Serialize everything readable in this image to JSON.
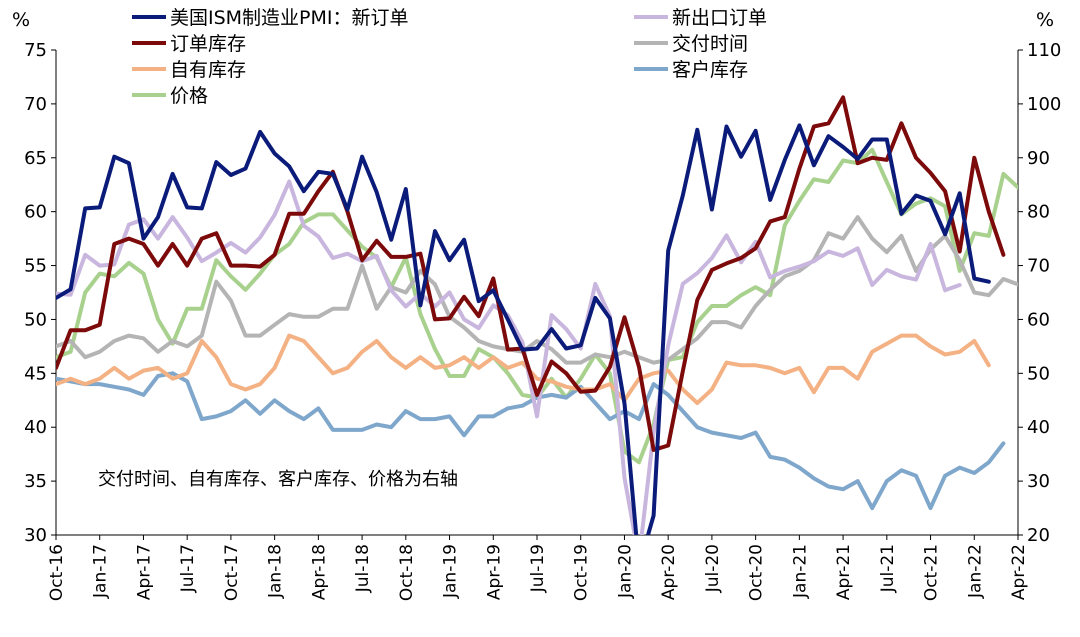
{
  "chart_data": {
    "type": "line",
    "y_left": {
      "unit": "%",
      "min": 30,
      "max": 75,
      "ticks": [
        30,
        35,
        40,
        45,
        50,
        55,
        60,
        65,
        70,
        75
      ]
    },
    "y_right": {
      "unit": "%",
      "min": 20,
      "max": 110,
      "ticks": [
        20,
        30,
        40,
        50,
        60,
        70,
        80,
        90,
        100,
        110
      ]
    },
    "x_ticks": [
      "Oct-16",
      "Jan-17",
      "Apr-17",
      "Jul-17",
      "Oct-17",
      "Jan-18",
      "Apr-18",
      "Jul-18",
      "Oct-18",
      "Jan-19",
      "Apr-19",
      "Jul-19",
      "Oct-19",
      "Jan-20",
      "Apr-20",
      "Jul-20",
      "Oct-20",
      "Jan-21",
      "Apr-21",
      "Jul-21",
      "Oct-21",
      "Jan-22",
      "Apr-22"
    ],
    "annotation": "交付时间、自有库存、客户库存、价格为右轴",
    "series": [
      {
        "name": "美国ISM制造业PMI：新订单",
        "axis": "left",
        "color": "#0b1b7a",
        "values": [
          52.0,
          52.8,
          60.3,
          60.4,
          65.1,
          64.5,
          57.5,
          59.5,
          63.5,
          60.4,
          60.3,
          64.6,
          63.4,
          64.0,
          67.4,
          65.4,
          64.2,
          61.9,
          63.7,
          63.5,
          60.2,
          65.1,
          61.8,
          57.4,
          62.1,
          51.3,
          58.2,
          55.5,
          57.4,
          51.7,
          52.7,
          50.0,
          47.2,
          47.3,
          49.1,
          47.3,
          47.6,
          52.0,
          50.1,
          42.2,
          27.1,
          31.8,
          56.4,
          61.5,
          67.6,
          60.2,
          67.9,
          65.1,
          67.5,
          61.1,
          64.8,
          68.0,
          64.3,
          67.0,
          66.0,
          64.9,
          66.7,
          66.7,
          59.8,
          61.5,
          61.0,
          57.9,
          61.7,
          53.8,
          53.5
        ]
      },
      {
        "name": "订单库存",
        "axis": "left",
        "color": "#7d0a0a",
        "values": [
          45.5,
          49.0,
          49.0,
          49.5,
          57.0,
          57.5,
          57.0,
          55.0,
          57.0,
          55.0,
          57.5,
          58.0,
          55.0,
          55.0,
          54.9,
          56.0,
          59.8,
          59.8,
          61.9,
          63.7,
          60.0,
          55.5,
          57.3,
          55.8,
          55.8,
          56.1,
          50.0,
          50.1,
          52.1,
          50.3,
          53.8,
          47.2,
          47.3,
          43.0,
          46.1,
          45.0,
          43.3,
          43.4,
          45.6,
          50.2,
          45.6,
          37.9,
          38.3,
          45.2,
          51.8,
          54.6,
          55.2,
          55.7,
          56.6,
          59.1,
          59.5,
          64.0,
          67.9,
          68.2,
          70.6,
          64.5,
          65.0,
          64.8,
          68.2,
          65.0,
          63.6,
          61.9,
          56.3,
          65.0,
          60.0,
          56.0
        ]
      },
      {
        "name": "自有库存",
        "axis": "right",
        "color": "#f4b183",
        "values": [
          48.0,
          49.0,
          48.0,
          49.0,
          51.0,
          49.0,
          50.5,
          51.0,
          49.0,
          50.0,
          56.0,
          53.0,
          48.0,
          47.0,
          48.0,
          51.0,
          57.0,
          56.0,
          53.0,
          50.0,
          51.0,
          54.0,
          56.0,
          53.0,
          51.0,
          53.0,
          51.0,
          51.5,
          53.0,
          51.0,
          53.0,
          51.0,
          52.0,
          49.0,
          48.5,
          47.5,
          47.0,
          47.0,
          48.0,
          45.0,
          49.0,
          50.0,
          50.5,
          47.0,
          44.5,
          47.0,
          52.0,
          51.5,
          51.5,
          51.0,
          50.0,
          51.0,
          46.5,
          51.0,
          51.0,
          49.0,
          54.0,
          55.5,
          57.0,
          57.0,
          55.0,
          53.5,
          54.0,
          56.0,
          51.5
        ]
      },
      {
        "name": "新出口订单",
        "axis": "left",
        "color": "#c9b6de",
        "values": [
          52.4,
          52.3,
          56.0,
          55.0,
          55.1,
          58.8,
          59.3,
          57.5,
          59.5,
          57.6,
          55.4,
          56.2,
          57.1,
          56.2,
          57.6,
          59.7,
          62.8,
          58.7,
          57.7,
          55.7,
          56.1,
          55.4,
          55.9,
          52.7,
          51.2,
          52.4,
          51.2,
          52.5,
          50.0,
          49.2,
          51.3,
          50.4,
          47.9,
          41.0,
          50.4,
          49.1,
          47.3,
          53.3,
          50.3,
          35.3,
          27.8,
          39.5,
          47.6,
          53.3,
          54.3,
          55.7,
          57.8,
          55.3,
          57.2,
          53.9,
          54.5,
          54.9,
          55.4,
          56.3,
          55.9,
          56.6,
          53.2,
          54.6,
          54.0,
          53.7,
          57.0,
          52.7,
          53.2
        ]
      },
      {
        "name": "交付时间",
        "axis": "right",
        "color": "#b4b4b4",
        "values": [
          55.0,
          56.0,
          53.0,
          54.0,
          56.0,
          57.0,
          56.5,
          54.0,
          56.0,
          55.0,
          57.0,
          67.0,
          63.5,
          57.0,
          57.0,
          59.0,
          61.0,
          60.5,
          60.5,
          62.0,
          62.0,
          70.0,
          62.0,
          66.0,
          65.0,
          69.0,
          66.5,
          60.5,
          58.5,
          56.0,
          55.0,
          54.5,
          54.0,
          56.0,
          54.5,
          52.0,
          52.0,
          53.5,
          53.0,
          54.0,
          53.0,
          52.0,
          52.5,
          54.5,
          56.5,
          59.5,
          59.5,
          58.5,
          62.5,
          65.5,
          68.0,
          69.0,
          71.0,
          76.0,
          75.0,
          79.0,
          75.0,
          72.5,
          75.5,
          69.0,
          73.0,
          75.5,
          71.0,
          65.0,
          64.5,
          67.5,
          66.5
        ]
      },
      {
        "name": "客户库存",
        "axis": "right",
        "color": "#7fa7cc",
        "values": [
          49.0,
          48.5,
          48.0,
          48.0,
          47.5,
          47.0,
          46.0,
          49.5,
          50.0,
          48.5,
          41.5,
          42.0,
          43.0,
          45.0,
          42.5,
          45.0,
          43.0,
          41.5,
          43.5,
          39.5,
          39.5,
          39.5,
          40.5,
          40.0,
          43.0,
          41.5,
          41.5,
          42.0,
          38.5,
          42.0,
          42.0,
          43.5,
          44.0,
          45.5,
          46.0,
          45.5,
          47.5,
          44.5,
          41.5,
          43.0,
          41.5,
          48.0,
          46.0,
          43.0,
          40.0,
          39.0,
          38.5,
          38.0,
          39.0,
          34.5,
          34.0,
          32.5,
          30.5,
          29.0,
          28.5,
          30.0,
          25.0,
          30.0,
          32.0,
          31.0,
          25.0,
          31.0,
          32.5,
          31.5,
          33.5,
          37.0
        ]
      },
      {
        "name": "价格",
        "axis": "right",
        "color": "#a9d18e",
        "values": [
          53.0,
          54.0,
          65.0,
          68.5,
          68.0,
          70.5,
          68.5,
          60.0,
          55.5,
          62.0,
          62.0,
          71.0,
          68.0,
          65.5,
          68.5,
          72.0,
          74.0,
          78.0,
          79.5,
          79.5,
          76.5,
          73.5,
          71.5,
          66.0,
          71.5,
          61.0,
          54.5,
          49.5,
          49.5,
          54.5,
          53.0,
          50.0,
          46.0,
          45.5,
          49.0,
          45.5,
          49.0,
          53.5,
          50.0,
          35.5,
          33.5,
          40.5,
          52.5,
          53.0,
          59.5,
          62.5,
          62.5,
          64.5,
          66.0,
          64.5,
          77.5,
          82.0,
          86.0,
          85.5,
          89.5,
          89.0,
          91.5,
          85.5,
          79.5,
          81.5,
          82.5,
          81.0,
          69.0,
          76.0,
          75.5,
          87.0,
          84.5
        ]
      }
    ],
    "legend": {
      "placement": "top",
      "entries": [
        "美国ISM制造业PMI：新订单",
        "订单库存",
        "自有库存",
        "价格",
        "新出口订单",
        "交付时间",
        "客户库存"
      ]
    }
  }
}
